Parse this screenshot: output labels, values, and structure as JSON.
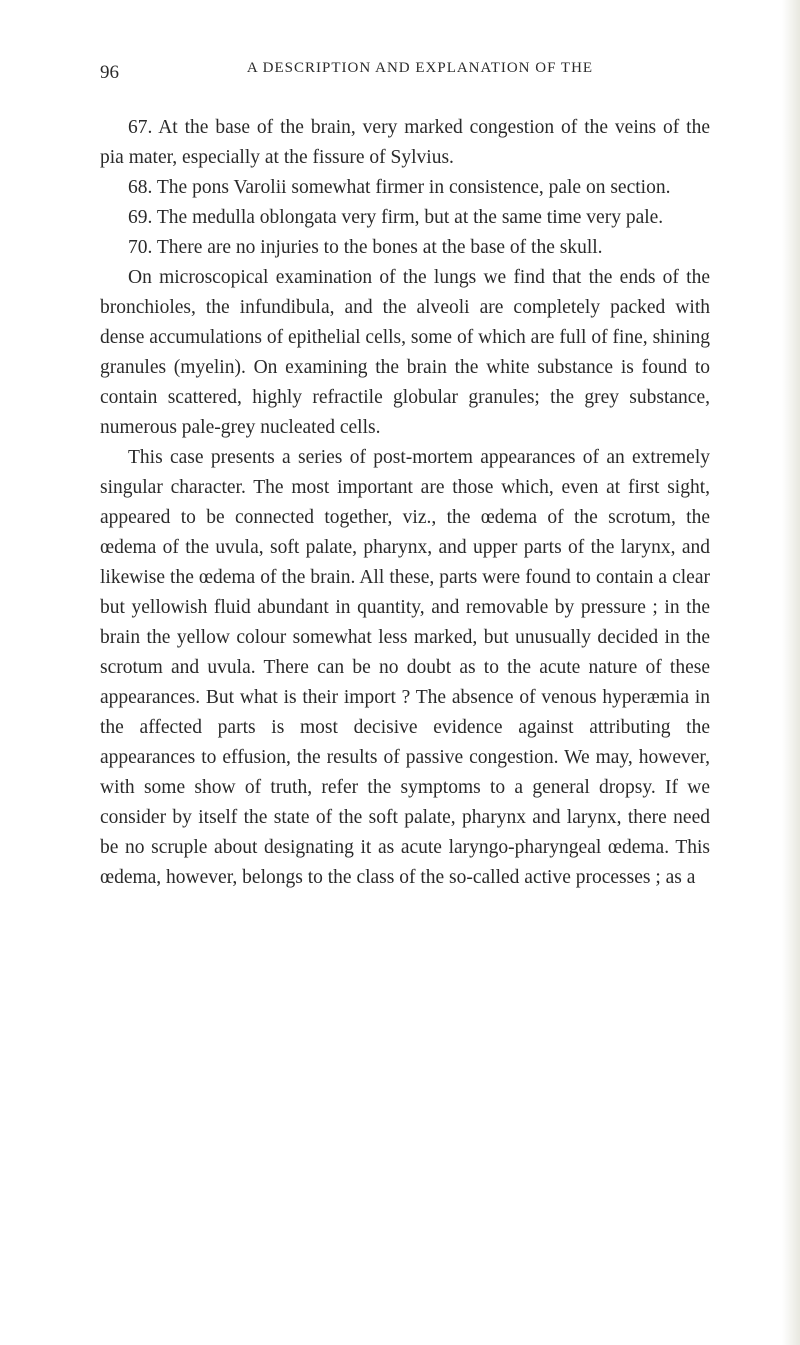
{
  "page": {
    "number": "96",
    "runningHeader": "A DESCRIPTION AND EXPLANATION OF THE",
    "paragraphs": [
      "67. At the base of the brain, very marked congestion of the veins of the pia mater, especially at the fissure of Sylvius.",
      "68. The pons Varolii somewhat firmer in consistence, pale on section.",
      "69. The medulla oblongata very firm, but at the same time very pale.",
      "70. There are no injuries to the bones at the base of the skull.",
      "On microscopical examination of the lungs we find that the ends of the bronchioles, the infundibula, and the alveoli are completely packed with dense accumulations of epithelial cells, some of which are full of fine, shining granules (myelin). On examining the brain the white substance is found to contain scattered, highly refractile globular granules; the grey substance, numerous pale-grey nucleated cells.",
      "This case presents a series of post-mortem appearances of an extremely singular character. The most important are those which, even at first sight, appeared to be connected together, viz., the œdema of the scrotum, the œdema of the uvula, soft palate, pharynx, and upper parts of the larynx, and likewise the œdema of the brain. All these, parts were found to contain a clear but yellowish fluid abundant in quantity, and removable by pressure ; in the brain the yellow colour somewhat less marked, but unusually decided in the scrotum and uvula. There can be no doubt as to the acute nature of these appearances. But what is their import ? The absence of venous hyperæmia in the affected parts is most decisive evidence against attributing the appearances to effusion, the results of passive congestion. We may, however, with some show of truth, refer the symptoms to a general dropsy. If we consider by itself the state of the soft palate, pharynx and larynx, there need be no scruple about designating it as acute laryngo-pharyngeal œdema. This œdema, however, belongs to the class of the so-called active processes ; as a"
    ]
  },
  "styling": {
    "backgroundColor": "#ffffff",
    "textColor": "#2a2a2a",
    "fontFamily": "Georgia, Times New Roman, serif",
    "bodyFontSize": 19.5,
    "lineHeight": 1.54,
    "pageNumberFontSize": 19,
    "headerFontSize": 15,
    "textIndent": 28,
    "pageWidth": 800,
    "pageHeight": 1345
  }
}
